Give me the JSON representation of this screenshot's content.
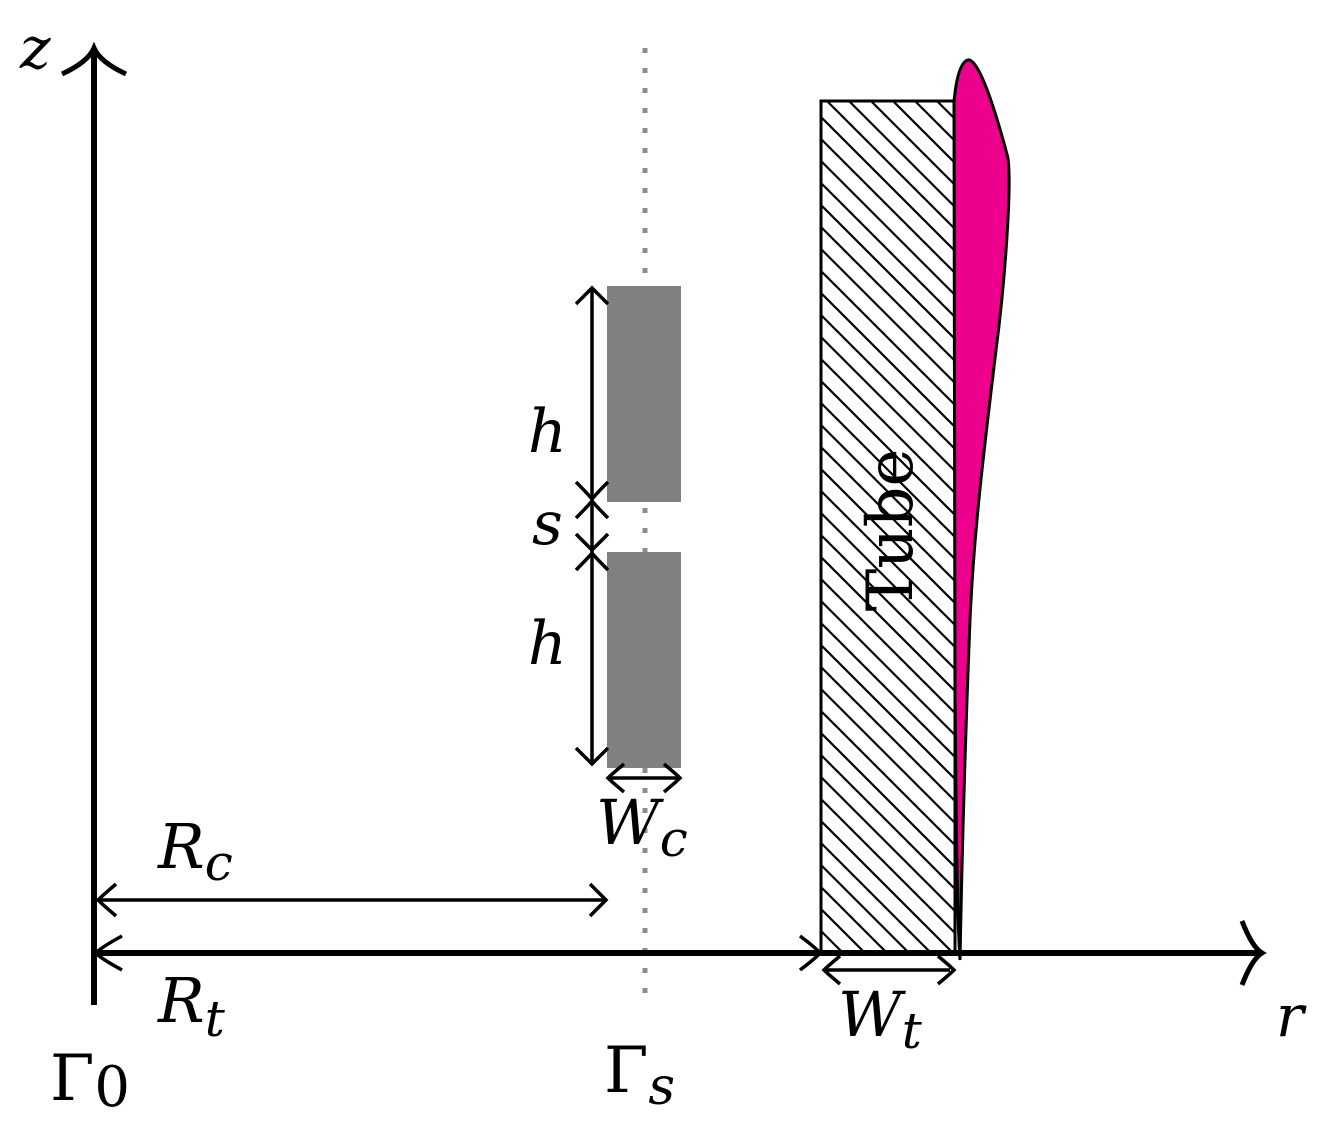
{
  "colors": {
    "ink": "#000000",
    "coil": "#808080",
    "axis_dotted": "#8c8c8c",
    "deformation": "#ec008c",
    "background": "#ffffff"
  },
  "labels": {
    "z_axis": "z",
    "r_axis": "r",
    "h_upper": "h",
    "h_lower": "h",
    "gap": "s",
    "coil_width_main": "W",
    "coil_width_sub": "c",
    "coil_radius_main": "R",
    "coil_radius_sub": "c",
    "tube_radius_main": "R",
    "tube_radius_sub": "t",
    "tube_width_main": "W",
    "tube_width_sub": "t",
    "tube": "Tube",
    "gamma_0_main": "Γ",
    "gamma_0_sub": "0",
    "gamma_s_main": "Γ",
    "gamma_s_sub": "s"
  }
}
